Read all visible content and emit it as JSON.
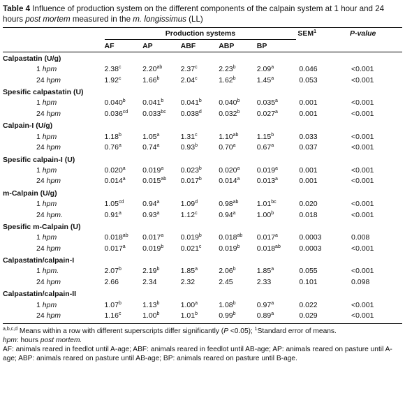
{
  "caption": {
    "label": "Table 4",
    "t1": " Influence of production system on the different components of the calpain system at 1 hour and 24 hours ",
    "t2": "post mortem",
    "t3": " measured in the ",
    "t4": "m. longissimus",
    "t5": " (LL)"
  },
  "header": {
    "group": "Production systems",
    "cols": [
      "AF",
      "AP",
      "ABF",
      "ABP",
      "BP"
    ],
    "sem": "SEM",
    "sem_sup": "1",
    "p": "P-value"
  },
  "sections": [
    {
      "title": "Calpastatin (U/g)",
      "rows": [
        {
          "label": "1 hpm",
          "cells": [
            [
              "2.38",
              "c"
            ],
            [
              "2.20",
              "ab"
            ],
            [
              "2.37",
              "c"
            ],
            [
              "2.23",
              "b"
            ],
            [
              "2.09",
              "a"
            ]
          ],
          "sem": "0.046",
          "p": "<0.001"
        },
        {
          "label": "24 hpm",
          "cells": [
            [
              "1.92",
              "c"
            ],
            [
              "1.66",
              "b"
            ],
            [
              "2.04",
              "c"
            ],
            [
              "1.62",
              "b"
            ],
            [
              "1.45",
              "a"
            ]
          ],
          "sem": "0.053",
          "p": "<0.001"
        }
      ]
    },
    {
      "title": "Spesific calpastatin (U)",
      "rows": [
        {
          "label": "1 hpm",
          "cells": [
            [
              "0.040",
              "b"
            ],
            [
              "0.041",
              "b"
            ],
            [
              "0.041",
              "b"
            ],
            [
              "0.040",
              "b"
            ],
            [
              "0.035",
              "a"
            ]
          ],
          "sem": "0.001",
          "p": "<0.001"
        },
        {
          "label": "24 hpm",
          "cells": [
            [
              "0.036",
              "cd"
            ],
            [
              "0.033",
              "bc"
            ],
            [
              "0.038",
              "d"
            ],
            [
              "0.032",
              "b"
            ],
            [
              "0.027",
              "a"
            ]
          ],
          "sem": "0.001",
          "p": "<0.001"
        }
      ]
    },
    {
      "title": "Calpain-I (U/g)",
      "rows": [
        {
          "label": "1 hpm",
          "cells": [
            [
              "1.18",
              "b"
            ],
            [
              "1.05",
              "a"
            ],
            [
              "1.31",
              "c"
            ],
            [
              "1.10",
              "ab"
            ],
            [
              "1.15",
              "b"
            ]
          ],
          "sem": "0.033",
          "p": "<0.001"
        },
        {
          "label": "24 hpm",
          "cells": [
            [
              "0.76",
              "a"
            ],
            [
              "0.74",
              "a"
            ],
            [
              "0.93",
              "b"
            ],
            [
              "0.70",
              "a"
            ],
            [
              "0.67",
              "a"
            ]
          ],
          "sem": "0.037",
          "p": "<0.001"
        }
      ]
    },
    {
      "title": "Spesific calpain-I (U)",
      "rows": [
        {
          "label": "1 hpm",
          "cells": [
            [
              "0.020",
              "a"
            ],
            [
              "0.019",
              "a"
            ],
            [
              "0.023",
              "b"
            ],
            [
              "0.020",
              "a"
            ],
            [
              "0.019",
              "a"
            ]
          ],
          "sem": "0.001",
          "p": "<0.001"
        },
        {
          "label": "24 hpm",
          "cells": [
            [
              "0.014",
              "a"
            ],
            [
              "0.015",
              "ab"
            ],
            [
              "0.017",
              "b"
            ],
            [
              "0.014",
              "a"
            ],
            [
              "0.013",
              "a"
            ]
          ],
          "sem": "0.001",
          "p": "<0.001"
        }
      ]
    },
    {
      "title": "m-Calpain (U/g)",
      "rows": [
        {
          "label": "1 hpm",
          "cells": [
            [
              "1.05",
              "cd"
            ],
            [
              "0.94",
              "a"
            ],
            [
              "1.09",
              "d"
            ],
            [
              "0.98",
              "ab"
            ],
            [
              "1.01",
              "bc"
            ]
          ],
          "sem": "0.020",
          "p": "<0.001"
        },
        {
          "label": "24 hpm.",
          "cells": [
            [
              "0.91",
              "a"
            ],
            [
              "0.93",
              "a"
            ],
            [
              "1.12",
              "c"
            ],
            [
              "0.94",
              "a"
            ],
            [
              "1.00",
              "b"
            ]
          ],
          "sem": "0.018",
          "p": "<0.001"
        }
      ]
    },
    {
      "title": "Spesific m-Calpain (U)",
      "rows": [
        {
          "label": "1 hpm",
          "cells": [
            [
              "0.018",
              "ab"
            ],
            [
              "0.017",
              "a"
            ],
            [
              "0.019",
              "b"
            ],
            [
              "0.018",
              "ab"
            ],
            [
              "0.017",
              "a"
            ]
          ],
          "sem": "0.0003",
          "p": "0.008"
        },
        {
          "label": "24 hpm",
          "cells": [
            [
              "0.017",
              "a"
            ],
            [
              "0.019",
              "b"
            ],
            [
              "0.021",
              "c"
            ],
            [
              "0.019",
              "b"
            ],
            [
              "0.018",
              "ab"
            ]
          ],
          "sem": "0.0003",
          "p": "<0.001"
        }
      ]
    },
    {
      "title": "Calpastatin/calpain-I",
      "rows": [
        {
          "label": "1 hpm.",
          "cells": [
            [
              "2.07",
              "b"
            ],
            [
              "2.19",
              "b"
            ],
            [
              "1.85",
              "a"
            ],
            [
              "2.06",
              "b"
            ],
            [
              "1.85",
              "a"
            ]
          ],
          "sem": "0.055",
          "p": "<0.001"
        },
        {
          "label": "24 hpm",
          "cells": [
            [
              "2.66",
              ""
            ],
            [
              "2.34",
              ""
            ],
            [
              "2.32",
              ""
            ],
            [
              "2.45",
              ""
            ],
            [
              "2.33",
              ""
            ]
          ],
          "sem": "0.101",
          "p": "0.098"
        }
      ]
    },
    {
      "title": "Calpastatin/calpain-II",
      "rows": [
        {
          "label": "1 hpm",
          "cells": [
            [
              "1.07",
              "b"
            ],
            [
              "1.13",
              "b"
            ],
            [
              "1.00",
              "a"
            ],
            [
              "1.08",
              "b"
            ],
            [
              "0.97",
              "a"
            ]
          ],
          "sem": "0.022",
          "p": "<0.001"
        },
        {
          "label": "24 hpm",
          "cells": [
            [
              "1.16",
              "c"
            ],
            [
              "1.00",
              "b"
            ],
            [
              "1.01",
              "b"
            ],
            [
              "0.99",
              "b"
            ],
            [
              "0.89",
              "a"
            ]
          ],
          "sem": "0.029",
          "p": "<0.001"
        }
      ]
    }
  ],
  "notes": {
    "n1_sup": "a,b,c,d",
    "n1_a": " Means within a row with different superscripts differ significantly (",
    "n1_p": "P",
    "n1_b": " <0.05); ",
    "n1_sup2": "1",
    "n1_c": "Standard error of means.",
    "n2_a": "hpm",
    "n2_b": ": hours ",
    "n2_c": "post mortem.",
    "n3": "AF: animals reared in feedlot until A-age; ABF: animals reared in feedlot until AB-age; AP: animals reared on pasture until A-age; ABP: animals reared on pasture until AB-age; BP: animals reared on pasture until B-age."
  }
}
